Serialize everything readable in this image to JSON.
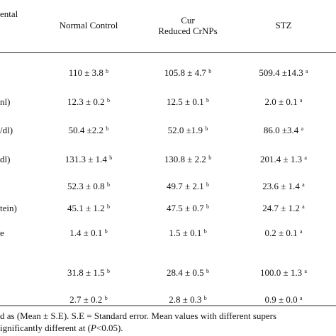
{
  "header": {
    "first_col": "ental",
    "col1": "Normal Control",
    "col2_line1": "Cur",
    "col2_line2": "Reduced CrNPs",
    "col3": "STZ"
  },
  "rows": [
    {
      "label": "",
      "c1": "110 ± 3.8 ",
      "c1s": "b",
      "c2": "105.8 ± 4.7 ",
      "c2s": "b",
      "c3": "509.4 ±14.3 ",
      "c3s": "a"
    },
    {
      "label": "nl)",
      "c1": "12.3 ± 0.2 ",
      "c1s": "b",
      "c2": "12.5 ± 0.1 ",
      "c2s": "b",
      "c3": "2.0 ± 0.1 ",
      "c3s": "a"
    },
    {
      "label": "/dl)",
      "c1": "50.4 ±2.2 ",
      "c1s": "b",
      "c2": "52.0 ±1.9 ",
      "c2s": "b",
      "c3": "86.0 ±3.4 ",
      "c3s": "a"
    },
    {
      "label": "dl)",
      "c1": "131.3 ± 1.4 ",
      "c1s": "b",
      "c2": "130.8 ± 2.2 ",
      "c2s": "b",
      "c3": "201.4 ± 1.3 ",
      "c3s": "a"
    },
    {
      "label": "",
      "c1": "52.3 ± 0.8 ",
      "c1s": "b",
      "c2": "49.7 ± 2.1 ",
      "c2s": "b",
      "c3": "23.6 ± 1.4 ",
      "c3s": "a"
    },
    {
      "label": "tein)",
      "c1": "45.1 ± 1.2 ",
      "c1s": "b",
      "c2": "47.5 ± 0.7 ",
      "c2s": "b",
      "c3": "24.7 ± 1.2 ",
      "c3s": "a"
    },
    {
      "label": "e",
      "c1": "1.4 ± 0.1 ",
      "c1s": "b",
      "c2": "1.5 ± 0.1 ",
      "c2s": "b",
      "c3": "0.2 ± 0.1 ",
      "c3s": "a"
    },
    {
      "label": "",
      "c1": "31.8 ± 1.5 ",
      "c1s": "b",
      "c2": "28.4 ± 0.5 ",
      "c2s": "b",
      "c3": "100.0 ± 1.3 ",
      "c3s": "a"
    },
    {
      "label": "",
      "c1": "2.7 ± 0.2 ",
      "c1s": "b",
      "c2": "2.8 ± 0.3 ",
      "c2s": "b",
      "c3": "0.9 ± 0.0 ",
      "c3s": "a"
    }
  ],
  "footnote": {
    "line1": "d as (Mean ± S.E). S.E = Standard error. Mean values with different supers",
    "line2_prefix": "ignificantly different at (",
    "line2_italic": "P",
    "line2_suffix": "<0.05)."
  }
}
